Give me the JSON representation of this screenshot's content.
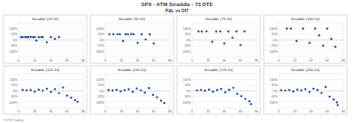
{
  "header": {
    "title": "SPX - ATM Straddle - 73 DTE",
    "subtitle": "P&L vs DIT"
  },
  "footer": "© DTR Trading",
  "chart_data": [
    {
      "type": "scatter",
      "title": "Straddle (25:10)",
      "x": [
        3,
        5,
        8,
        10,
        12,
        15,
        18,
        20,
        22,
        25,
        28,
        30,
        35,
        40,
        45,
        50
      ],
      "values": [
        25,
        25,
        26,
        25,
        25,
        27,
        25,
        25,
        -5,
        25,
        26,
        25,
        -20,
        25,
        10,
        25
      ],
      "color": "#1f4e96",
      "marker": "circle",
      "xlim": [
        0,
        80
      ],
      "xticks": [
        0,
        20,
        40,
        60,
        80
      ],
      "ylim": [
        -150,
        150
      ],
      "yticks": [
        {
          "value": -100,
          "label": "-100%"
        },
        {
          "value": -50,
          "label": "-50%"
        },
        {
          "value": 0,
          "label": "0%"
        },
        {
          "value": 50,
          "label": "50%"
        },
        {
          "value": 100,
          "label": "100%"
        }
      ],
      "grid": true
    },
    {
      "type": "scatter",
      "title": "Straddle (50:10)",
      "x": [
        5,
        10,
        15,
        18,
        22,
        25,
        28,
        32,
        35,
        40,
        45,
        50,
        55,
        60
      ],
      "values": [
        50,
        50,
        51,
        50,
        -10,
        50,
        50,
        52,
        50,
        -25,
        50,
        5,
        50,
        -30
      ],
      "color": "#1f4e96",
      "marker": "circle",
      "xlim": [
        0,
        80
      ],
      "xticks": [
        0,
        20,
        40,
        60,
        80
      ],
      "ylim": [
        -150,
        150
      ],
      "yticks": [
        {
          "value": -100,
          "label": "-100%"
        },
        {
          "value": -50,
          "label": "-50%"
        },
        {
          "value": 0,
          "label": "0%"
        },
        {
          "value": 50,
          "label": "50%"
        },
        {
          "value": 100,
          "label": "100%"
        }
      ],
      "grid": true
    },
    {
      "type": "scatter",
      "title": "Straddle (75:10)",
      "x": [
        8,
        12,
        18,
        25,
        30,
        35,
        40,
        45,
        50,
        55,
        60,
        65
      ],
      "values": [
        75,
        75,
        76,
        -15,
        75,
        75,
        -30,
        75,
        20,
        75,
        -45,
        75
      ],
      "color": "#1f4e96",
      "marker": "circle",
      "xlim": [
        0,
        80
      ],
      "xticks": [
        0,
        20,
        40,
        60,
        80
      ],
      "ylim": [
        -150,
        150
      ],
      "yticks": [
        {
          "value": -100,
          "label": "-100%"
        },
        {
          "value": -50,
          "label": "-50%"
        },
        {
          "value": 0,
          "label": "0%"
        },
        {
          "value": 50,
          "label": "50%"
        },
        {
          "value": 100,
          "label": "100%"
        }
      ],
      "grid": true
    },
    {
      "type": "scatter",
      "title": "Straddle (100:10)",
      "x": [
        10,
        15,
        22,
        30,
        38,
        45,
        50,
        55,
        60,
        65,
        70
      ],
      "values": [
        100,
        100,
        -10,
        100,
        -25,
        100,
        40,
        -50,
        100,
        10,
        -60
      ],
      "color": "#1f4e96",
      "marker": "circle",
      "xlim": [
        0,
        80
      ],
      "xticks": [
        0,
        20,
        40,
        60,
        80
      ],
      "ylim": [
        -150,
        150
      ],
      "yticks": [
        {
          "value": -100,
          "label": "-100%"
        },
        {
          "value": -50,
          "label": "-50%"
        },
        {
          "value": 0,
          "label": "0%"
        },
        {
          "value": 50,
          "label": "50%"
        },
        {
          "value": 100,
          "label": "100%"
        }
      ],
      "grid": true
    },
    {
      "type": "scatter",
      "title": "Straddle (125:10)",
      "x": [
        5,
        10,
        15,
        20,
        25,
        30,
        35,
        40,
        45,
        50,
        55,
        60,
        65,
        70,
        73
      ],
      "values": [
        10,
        5,
        8,
        -5,
        12,
        3,
        20,
        -10,
        15,
        -20,
        30,
        -40,
        -60,
        -80,
        -95
      ],
      "color": "#1f4e96",
      "marker": "circle",
      "xlim": [
        0,
        80
      ],
      "xticks": [
        0,
        20,
        40,
        60,
        80
      ],
      "ylim": [
        -150,
        150
      ],
      "yticks": [
        {
          "value": -100,
          "label": "-100%"
        },
        {
          "value": -50,
          "label": "-50%"
        },
        {
          "value": 0,
          "label": "0%"
        },
        {
          "value": 50,
          "label": "50%"
        },
        {
          "value": 100,
          "label": "100%"
        }
      ],
      "grid": true
    },
    {
      "type": "scatter",
      "title": "Straddle (150:10)",
      "x": [
        4,
        9,
        14,
        19,
        24,
        29,
        34,
        39,
        44,
        49,
        54,
        59,
        64,
        69,
        73
      ],
      "values": [
        8,
        4,
        10,
        -3,
        6,
        15,
        -8,
        22,
        5,
        -15,
        25,
        -35,
        -55,
        -85,
        -105
      ],
      "color": "#1f4e96",
      "marker": "circle",
      "xlim": [
        0,
        80
      ],
      "xticks": [
        0,
        20,
        40,
        60,
        80
      ],
      "ylim": [
        -150,
        150
      ],
      "yticks": [
        {
          "value": -100,
          "label": "-100%"
        },
        {
          "value": -50,
          "label": "-50%"
        },
        {
          "value": 0,
          "label": "0%"
        },
        {
          "value": 50,
          "label": "50%"
        },
        {
          "value": 100,
          "label": "100%"
        }
      ],
      "grid": true
    },
    {
      "type": "scatter",
      "title": "Straddle (175:10)",
      "x": [
        6,
        11,
        16,
        21,
        26,
        31,
        36,
        41,
        46,
        51,
        56,
        61,
        66,
        71,
        73
      ],
      "values": [
        5,
        9,
        2,
        12,
        -6,
        8,
        18,
        -12,
        10,
        28,
        -25,
        -45,
        -70,
        -90,
        -115
      ],
      "color": "#1f4e96",
      "marker": "circle",
      "xlim": [
        0,
        80
      ],
      "xticks": [
        0,
        20,
        40,
        60,
        80
      ],
      "ylim": [
        -150,
        150
      ],
      "yticks": [
        {
          "value": -100,
          "label": "-100%"
        },
        {
          "value": -50,
          "label": "-50%"
        },
        {
          "value": 0,
          "label": "0%"
        },
        {
          "value": 50,
          "label": "50%"
        },
        {
          "value": 100,
          "label": "100%"
        }
      ],
      "grid": true
    },
    {
      "type": "scatter",
      "title": "Straddle (200:10)",
      "x": [
        3,
        8,
        13,
        18,
        23,
        28,
        33,
        38,
        43,
        48,
        53,
        58,
        63,
        68,
        72,
        73
      ],
      "values": [
        6,
        3,
        9,
        -4,
        11,
        5,
        16,
        -9,
        20,
        8,
        -18,
        35,
        -50,
        -75,
        -100,
        -125
      ],
      "color": "#1f4e96",
      "marker": "circle",
      "xlim": [
        0,
        80
      ],
      "xticks": [
        0,
        20,
        40,
        60,
        80
      ],
      "ylim": [
        -150,
        150
      ],
      "yticks": [
        {
          "value": -100,
          "label": "-100%"
        },
        {
          "value": -50,
          "label": "-50%"
        },
        {
          "value": 0,
          "label": "0%"
        },
        {
          "value": 50,
          "label": "50%"
        },
        {
          "value": 100,
          "label": "100%"
        }
      ],
      "grid": true
    }
  ]
}
